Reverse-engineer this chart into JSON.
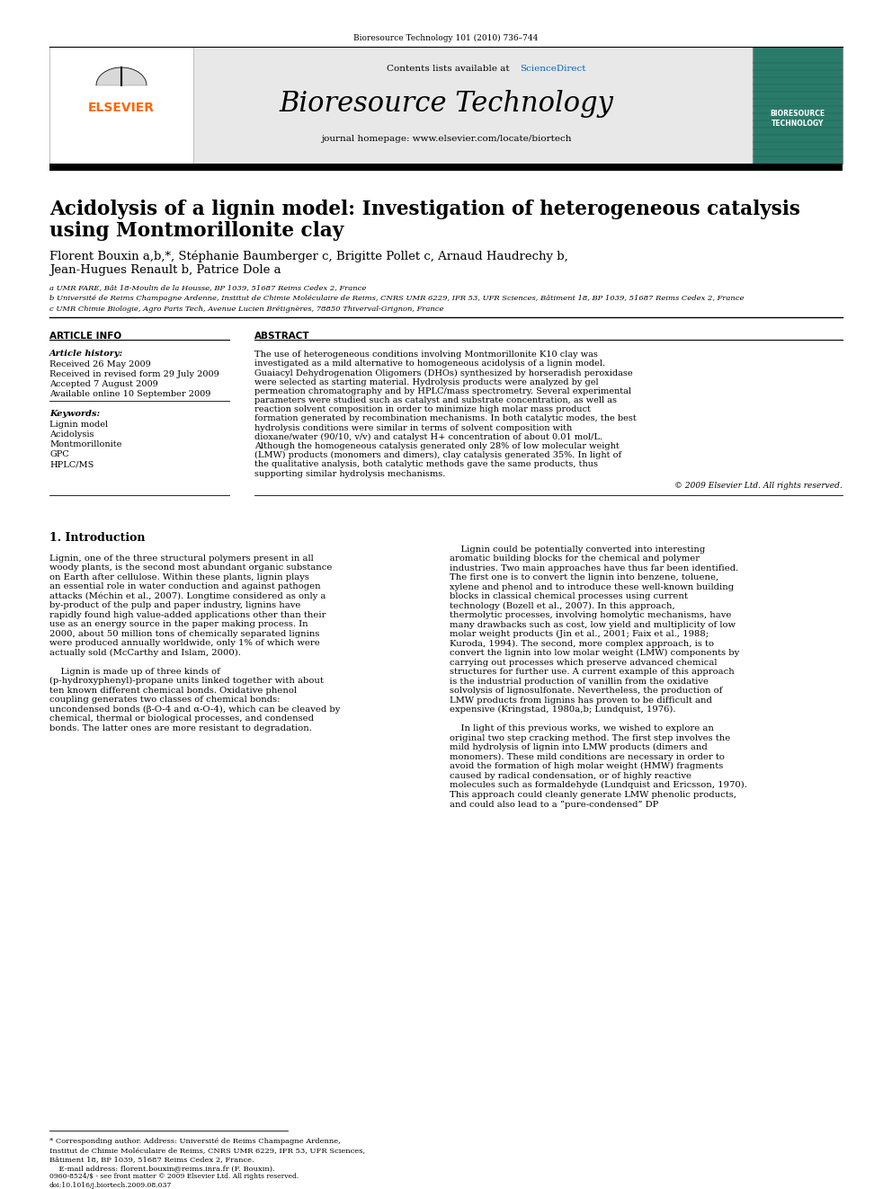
{
  "bg_color": "#ffffff",
  "header_journal_ref": "Bioresource Technology 101 (2010) 736–744",
  "journal_name": "Bioresource Technology",
  "journal_homepage": "journal homepage: www.elsevier.com/locate/biortech",
  "contents_line": "Contents lists available at ",
  "contents_sciencedirect": "ScienceDirect",
  "paper_title_line1": "Acidolysis of a lignin model: Investigation of heterogeneous catalysis",
  "paper_title_line2": "using Montmorillonite clay",
  "authors": "Florent Bouxin a,b,*, Stéphanie Baumberger c, Brigitte Pollet c, Arnaud Haudrechy b,",
  "authors2": "Jean-Hugues Renault b, Patrice Dole a",
  "affil_a": "a UMR FARE, Bât 18-Moulin de la Housse, BP 1039, 51687 Reims Cedex 2, France",
  "affil_b": "b Université de Reims Champagne Ardenne, Institut de Chimie Moléculaire de Reims, CNRS UMR 6229, IFR 53, UFR Sciences, Bâtiment 18, BP 1039, 51687 Reims Cedex 2, France",
  "affil_c": "c UMR Chimie Biologie, Agro Paris Tech, Avenue Lucien Brétignères, 78850 Thiverval-Grignon, France",
  "article_info_header": "ARTICLE INFO",
  "abstract_header": "ABSTRACT",
  "article_history_label": "Article history:",
  "received": "Received 26 May 2009",
  "received_revised": "Received in revised form 29 July 2009",
  "accepted": "Accepted 7 August 2009",
  "available": "Available online 10 September 2009",
  "keywords_label": "Keywords:",
  "keywords": [
    "Lignin model",
    "Acidolysis",
    "Montmorillonite",
    "GPC",
    "HPLC/MS"
  ],
  "abstract_text": "The use of heterogeneous conditions involving Montmorillonite K10 clay was investigated as a mild alternative to homogeneous acidolysis of a lignin model. Guaiacyl Dehydrogenation Oligomers (DHOs) synthesized by horseradish peroxidase were selected as starting material. Hydrolysis products were analyzed by gel permeation chromatography and by HPLC/mass spectrometry. Several experimental parameters were studied such as catalyst and substrate concentration, as well as reaction solvent composition in order to minimize high molar mass product formation generated by recombination mechanisms. In both catalytic modes, the best hydrolysis conditions were similar in terms of solvent composition with dioxane/water (90/10, v/v) and catalyst H+ concentration of about 0.01 mol/L. Although the homogeneous catalysis generated only 28% of low molecular weight (LMW) products (monomers and dimers), clay catalysis generated 35%. In light of the qualitative analysis, both catalytic methods gave the same products, thus supporting similar hydrolysis mechanisms.",
  "copyright": "© 2009 Elsevier Ltd. All rights reserved.",
  "intro_header": "1. Introduction",
  "intro_col1_p1": "Lignin, one of the three structural polymers present in all woody plants, is the second most abundant organic substance on Earth after cellulose. Within these plants, lignin plays an essential role in water conduction and against pathogen attacks (Méchin et al., 2007). Longtime considered as only a by-product of the pulp and paper industry, lignins have rapidly found high value-added applications other than their use as an energy source in the paper making process. In 2000, about 50 million tons of chemically separated lignins were produced annually worldwide, only 1% of which were actually sold (McCarthy and Islam, 2000).",
  "intro_col1_p2": "    Lignin is made up of three kinds of (p-hydroxyphenyl)-propane units linked together with about ten known different chemical bonds. Oxidative phenol coupling generates two classes of chemical bonds: uncondensed bonds (β-O-4 and α-O-4), which can be cleaved by chemical, thermal or biological processes, and condensed bonds. The latter ones are more resistant to degradation.",
  "intro_col2_p1": "    Lignin could be potentially converted into interesting aromatic building blocks for the chemical and polymer industries. Two main approaches have thus far been identified. The first one is to convert the lignin into benzene, toluene, xylene and phenol and to introduce these well-known building blocks in classical chemical processes using current technology (Bozell et al., 2007). In this approach, thermolytic processes, involving homolytic mechanisms, have many drawbacks such as cost, low yield and multiplicity of low molar weight products (Jin et al., 2001; Faix et al., 1988; Kuroda, 1994). The second, more complex approach, is to convert the lignin into low molar weight (LMW) components by carrying out processes which preserve advanced chemical structures for further use. A current example of this approach is the industrial production of vanillin from the oxidative solvolysis of lignosulfonate. Nevertheless, the production of LMW products from lignins has proven to be difficult and expensive (Kringstad, 1980a,b; Lundquist, 1976).",
  "intro_col2_p2": "    In light of this previous works, we wished to explore an original two step cracking method. The first step involves the mild hydrolysis of lignin into LMW products (dimers and monomers). These mild conditions are necessary in order to avoid the formation of high molar weight (HMW) fragments caused by radical condensation, or of highly reactive molecules such as formaldehyde (Lundquist and Ericsson, 1970). This approach could cleanly generate LMW phenolic products, and could also lead to a “pure-condensed” DP",
  "footer_line1": "0960-8524/$ - see front matter © 2009 Elsevier Ltd. All rights reserved.",
  "footer_line2": "doi:10.1016/j.biortech.2009.08.037",
  "footnote_line1": "* Corresponding author. Address: Université de Reims Champagne Ardenne,",
  "footnote_line2": "Institut de Chimie Moléculaire de Reims, CNRS UMR 6229, IFR 53, UFR Sciences,",
  "footnote_line3": "Bâtiment 18, BP 1039, 51687 Reims Cedex 2, France.",
  "footnote_line4": "    E-mail address: florent.bouxin@reims.inra.fr (F. Bouxin).",
  "elsevier_color": "#FF6600",
  "sciencedirect_color": "#0066cc",
  "header_gray": "#e8e8e8",
  "cover_green": "#2a7a6a"
}
